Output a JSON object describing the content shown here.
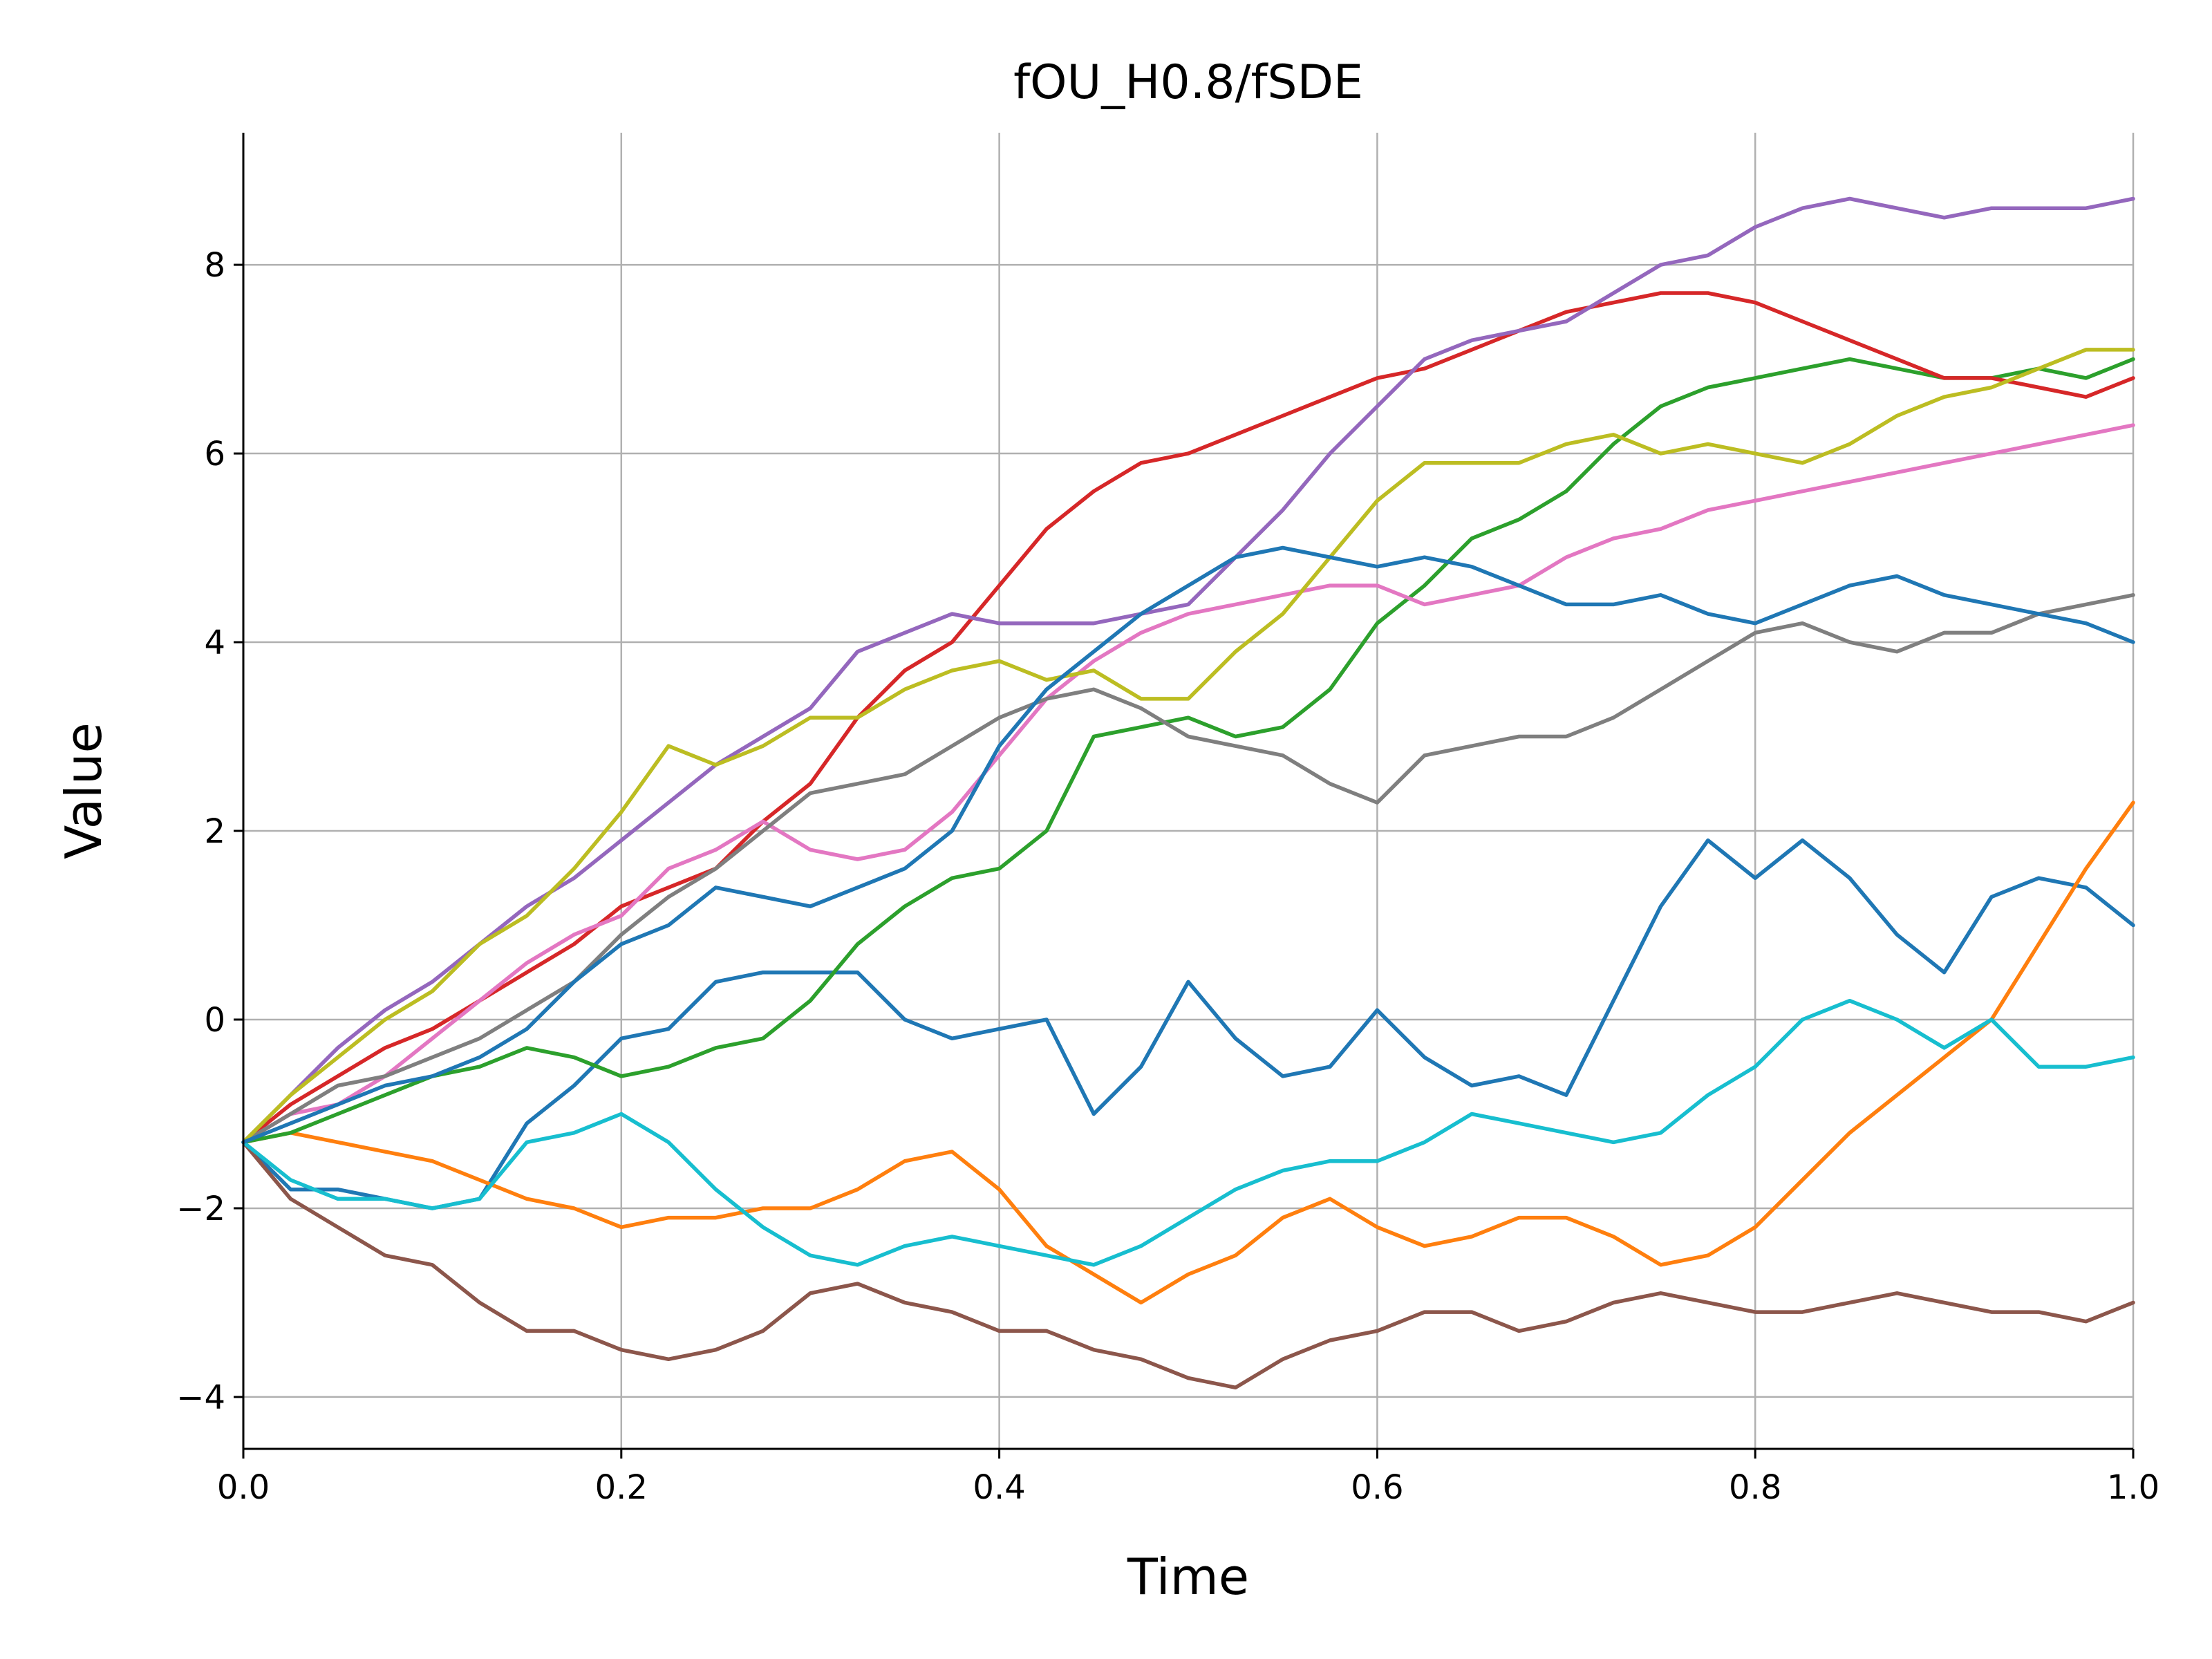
{
  "chart_data": {
    "type": "line",
    "title": "fOU_H0.8/fSDE",
    "xlabel": "Time",
    "ylabel": "Value",
    "xlim": [
      0.0,
      1.0
    ],
    "ylim": [
      -4.55,
      9.4
    ],
    "xticks": [
      0.0,
      0.2,
      0.4,
      0.6,
      0.8,
      1.0
    ],
    "xtick_labels": [
      "0.0",
      "0.2",
      "0.4",
      "0.6",
      "0.8",
      "1.0"
    ],
    "yticks": [
      -4,
      -2,
      0,
      2,
      4,
      6,
      8
    ],
    "ytick_labels": [
      "−4",
      "−2",
      "0",
      "2",
      "4",
      "6",
      "8"
    ],
    "grid": true,
    "x": [
      0.0,
      0.025,
      0.05,
      0.075,
      0.1,
      0.125,
      0.15,
      0.175,
      0.2,
      0.225,
      0.25,
      0.275,
      0.3,
      0.325,
      0.35,
      0.375,
      0.4,
      0.425,
      0.45,
      0.475,
      0.5,
      0.525,
      0.55,
      0.575,
      0.6,
      0.625,
      0.65,
      0.675,
      0.7,
      0.725,
      0.75,
      0.775,
      0.8,
      0.825,
      0.85,
      0.875,
      0.9,
      0.925,
      0.95,
      0.975,
      1.0
    ],
    "series": [
      {
        "color": "#1f77b4",
        "values": [
          -1.3,
          -1.8,
          -1.8,
          -1.9,
          -2.0,
          -1.9,
          -1.1,
          -0.7,
          -0.2,
          -0.1,
          0.4,
          0.5,
          0.5,
          0.5,
          0.0,
          -0.2,
          -0.1,
          0.0,
          -1.0,
          -0.5,
          0.4,
          -0.2,
          -0.6,
          -0.5,
          0.1,
          -0.4,
          -0.7,
          -0.6,
          -0.8,
          0.2,
          1.2,
          1.9,
          1.5,
          1.9,
          1.5,
          0.9,
          0.5,
          1.3,
          1.5,
          1.4,
          1.0
        ]
      },
      {
        "color": "#ff7f0e",
        "values": [
          -1.3,
          -1.2,
          -1.3,
          -1.4,
          -1.5,
          -1.7,
          -1.9,
          -2.0,
          -2.2,
          -2.1,
          -2.1,
          -2.0,
          -2.0,
          -1.8,
          -1.5,
          -1.4,
          -1.8,
          -2.4,
          -2.7,
          -3.0,
          -2.7,
          -2.5,
          -2.1,
          -1.9,
          -2.2,
          -2.4,
          -2.3,
          -2.1,
          -2.1,
          -2.3,
          -2.6,
          -2.5,
          -2.2,
          -1.7,
          -1.2,
          -0.8,
          -0.4,
          0.0,
          0.8,
          1.6,
          2.3
        ]
      },
      {
        "color": "#2ca02c",
        "values": [
          -1.3,
          -1.2,
          -1.0,
          -0.8,
          -0.6,
          -0.5,
          -0.3,
          -0.4,
          -0.6,
          -0.5,
          -0.3,
          -0.2,
          0.2,
          0.8,
          1.2,
          1.5,
          1.6,
          2.0,
          3.0,
          3.1,
          3.2,
          3.0,
          3.1,
          3.5,
          4.2,
          4.6,
          5.1,
          5.3,
          5.6,
          6.1,
          6.5,
          6.7,
          6.8,
          6.9,
          7.0,
          6.9,
          6.8,
          6.8,
          6.9,
          6.8,
          7.0
        ]
      },
      {
        "color": "#d62728",
        "values": [
          -1.3,
          -0.9,
          -0.6,
          -0.3,
          -0.1,
          0.2,
          0.5,
          0.8,
          1.2,
          1.4,
          1.6,
          2.1,
          2.5,
          3.2,
          3.7,
          4.0,
          4.6,
          5.2,
          5.6,
          5.9,
          6.0,
          6.2,
          6.4,
          6.6,
          6.8,
          6.9,
          7.1,
          7.3,
          7.5,
          7.6,
          7.7,
          7.7,
          7.6,
          7.4,
          7.2,
          7.0,
          6.8,
          6.8,
          6.7,
          6.6,
          6.8
        ]
      },
      {
        "color": "#9467bd",
        "values": [
          -1.3,
          -0.8,
          -0.3,
          0.1,
          0.4,
          0.8,
          1.2,
          1.5,
          1.9,
          2.3,
          2.7,
          3.0,
          3.3,
          3.9,
          4.1,
          4.3,
          4.2,
          4.2,
          4.2,
          4.3,
          4.4,
          4.9,
          5.4,
          6.0,
          6.5,
          7.0,
          7.2,
          7.3,
          7.4,
          7.7,
          8.0,
          8.1,
          8.4,
          8.6,
          8.7,
          8.6,
          8.5,
          8.6,
          8.6,
          8.6,
          8.7
        ]
      },
      {
        "color": "#8c564b",
        "values": [
          -1.3,
          -1.9,
          -2.2,
          -2.5,
          -2.6,
          -3.0,
          -3.3,
          -3.3,
          -3.5,
          -3.6,
          -3.5,
          -3.3,
          -2.9,
          -2.8,
          -3.0,
          -3.1,
          -3.3,
          -3.3,
          -3.5,
          -3.6,
          -3.8,
          -3.9,
          -3.6,
          -3.4,
          -3.3,
          -3.1,
          -3.1,
          -3.3,
          -3.2,
          -3.0,
          -2.9,
          -3.0,
          -3.1,
          -3.1,
          -3.0,
          -2.9,
          -3.0,
          -3.1,
          -3.1,
          -3.2,
          -3.0
        ]
      },
      {
        "color": "#e377c2",
        "values": [
          -1.3,
          -1.0,
          -0.9,
          -0.6,
          -0.2,
          0.2,
          0.6,
          0.9,
          1.1,
          1.6,
          1.8,
          2.1,
          1.8,
          1.7,
          1.8,
          2.2,
          2.8,
          3.4,
          3.8,
          4.1,
          4.3,
          4.4,
          4.5,
          4.6,
          4.6,
          4.4,
          4.5,
          4.6,
          4.9,
          5.1,
          5.2,
          5.4,
          5.5,
          5.6,
          5.7,
          5.8,
          5.9,
          6.0,
          6.1,
          6.2,
          6.3
        ]
      },
      {
        "color": "#7f7f7f",
        "values": [
          -1.3,
          -1.0,
          -0.7,
          -0.6,
          -0.4,
          -0.2,
          0.1,
          0.4,
          0.9,
          1.3,
          1.6,
          2.0,
          2.4,
          2.5,
          2.6,
          2.9,
          3.2,
          3.4,
          3.5,
          3.3,
          3.0,
          2.9,
          2.8,
          2.5,
          2.3,
          2.8,
          2.9,
          3.0,
          3.0,
          3.2,
          3.5,
          3.8,
          4.1,
          4.2,
          4.0,
          3.9,
          4.1,
          4.1,
          4.3,
          4.4,
          4.5
        ]
      },
      {
        "color": "#bcbd22",
        "values": [
          -1.3,
          -0.8,
          -0.4,
          0.0,
          0.3,
          0.8,
          1.1,
          1.6,
          2.2,
          2.9,
          2.7,
          2.9,
          3.2,
          3.2,
          3.5,
          3.7,
          3.8,
          3.6,
          3.7,
          3.4,
          3.4,
          3.9,
          4.3,
          4.9,
          5.5,
          5.9,
          5.9,
          5.9,
          6.1,
          6.2,
          6.0,
          6.1,
          6.0,
          5.9,
          6.1,
          6.4,
          6.6,
          6.7,
          6.9,
          7.1,
          7.1
        ]
      },
      {
        "color": "#17becf",
        "values": [
          -1.3,
          -1.7,
          -1.9,
          -1.9,
          -2.0,
          -1.9,
          -1.3,
          -1.2,
          -1.0,
          -1.3,
          -1.8,
          -2.2,
          -2.5,
          -2.6,
          -2.4,
          -2.3,
          -2.4,
          -2.5,
          -2.6,
          -2.4,
          -2.1,
          -1.8,
          -1.6,
          -1.5,
          -1.5,
          -1.3,
          -1.0,
          -1.1,
          -1.2,
          -1.3,
          -1.2,
          -0.8,
          -0.5,
          0.0,
          0.2,
          0.0,
          -0.3,
          0.0,
          -0.5,
          -0.5,
          -0.4
        ]
      },
      {
        "color": "#1f77b4",
        "values": [
          -1.3,
          -1.1,
          -0.9,
          -0.7,
          -0.6,
          -0.4,
          -0.1,
          0.4,
          0.8,
          1.0,
          1.4,
          1.3,
          1.2,
          1.4,
          1.6,
          2.0,
          2.9,
          3.5,
          3.9,
          4.3,
          4.6,
          4.9,
          5.0,
          4.9,
          4.8,
          4.9,
          4.8,
          4.6,
          4.4,
          4.4,
          4.5,
          4.3,
          4.2,
          4.4,
          4.6,
          4.7,
          4.5,
          4.4,
          4.3,
          4.2,
          4.0
        ]
      }
    ]
  }
}
